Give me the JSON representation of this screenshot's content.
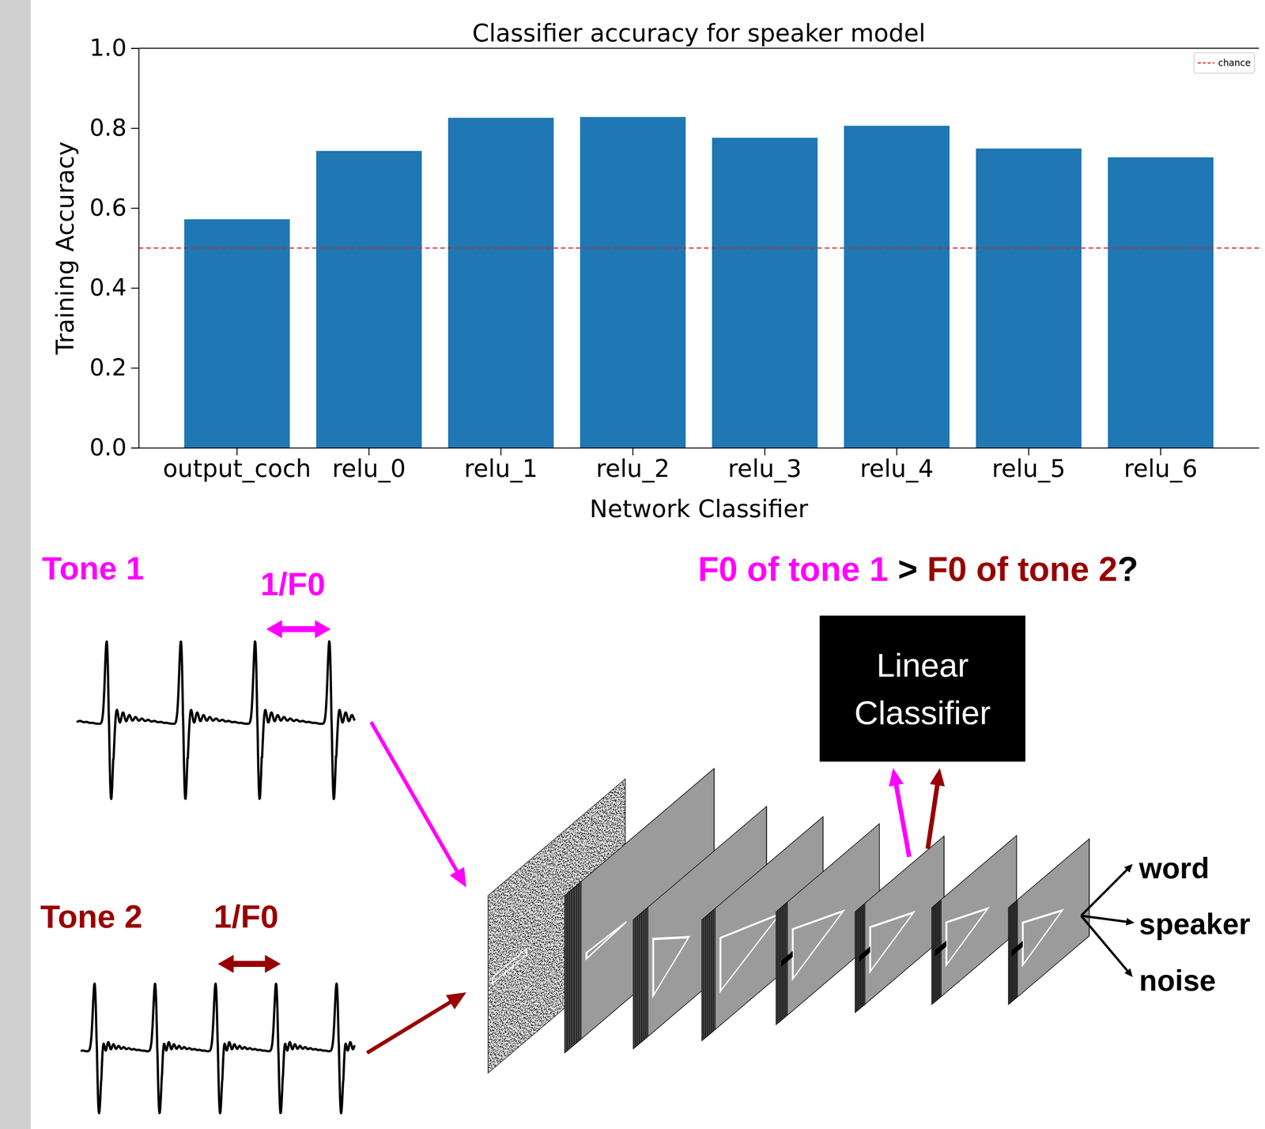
{
  "chart_data": {
    "type": "bar",
    "title": "Classifier accuracy for speaker model",
    "x_label": "Network Classifier",
    "y_label": "Training Accuracy",
    "categories": [
      "output_coch",
      "relu_0",
      "relu_1",
      "relu_2",
      "relu_3",
      "relu_4",
      "relu_5",
      "relu_6"
    ],
    "values": [
      0.572,
      0.743,
      0.826,
      0.828,
      0.776,
      0.806,
      0.749,
      0.727
    ],
    "color": "#1f77b4",
    "ylim": [
      0,
      1
    ],
    "yticks": [
      {
        "value": 0,
        "label": "0.0"
      },
      0.2,
      0.4,
      0.6,
      0.8,
      {
        "value": 1,
        "label": "1.0"
      }
    ],
    "lines": [
      {
        "name": "chance",
        "value": 0.5,
        "color": "#d62728",
        "line_style": "dashed"
      }
    ],
    "legend": "upper right",
    "grid": false
  },
  "diagram": {
    "tones": [
      {
        "label": "Tone 1",
        "period_label": "1/F0",
        "color": "#ff00ff"
      },
      {
        "label": "Tone 2",
        "period_label": "1/F0",
        "color": "#990000"
      }
    ],
    "question": [
      {
        "text": "F0 of tone 1",
        "color": "#ff00ff"
      },
      {
        "text": ">",
        "color": "#000000"
      },
      {
        "text": "F0 of tone 2",
        "color": "#990000"
      },
      {
        "text": "?",
        "color": "#000000"
      }
    ],
    "classifier": "Linear Classifier",
    "outputs": [
      "word",
      "speaker",
      "noise"
    ]
  }
}
